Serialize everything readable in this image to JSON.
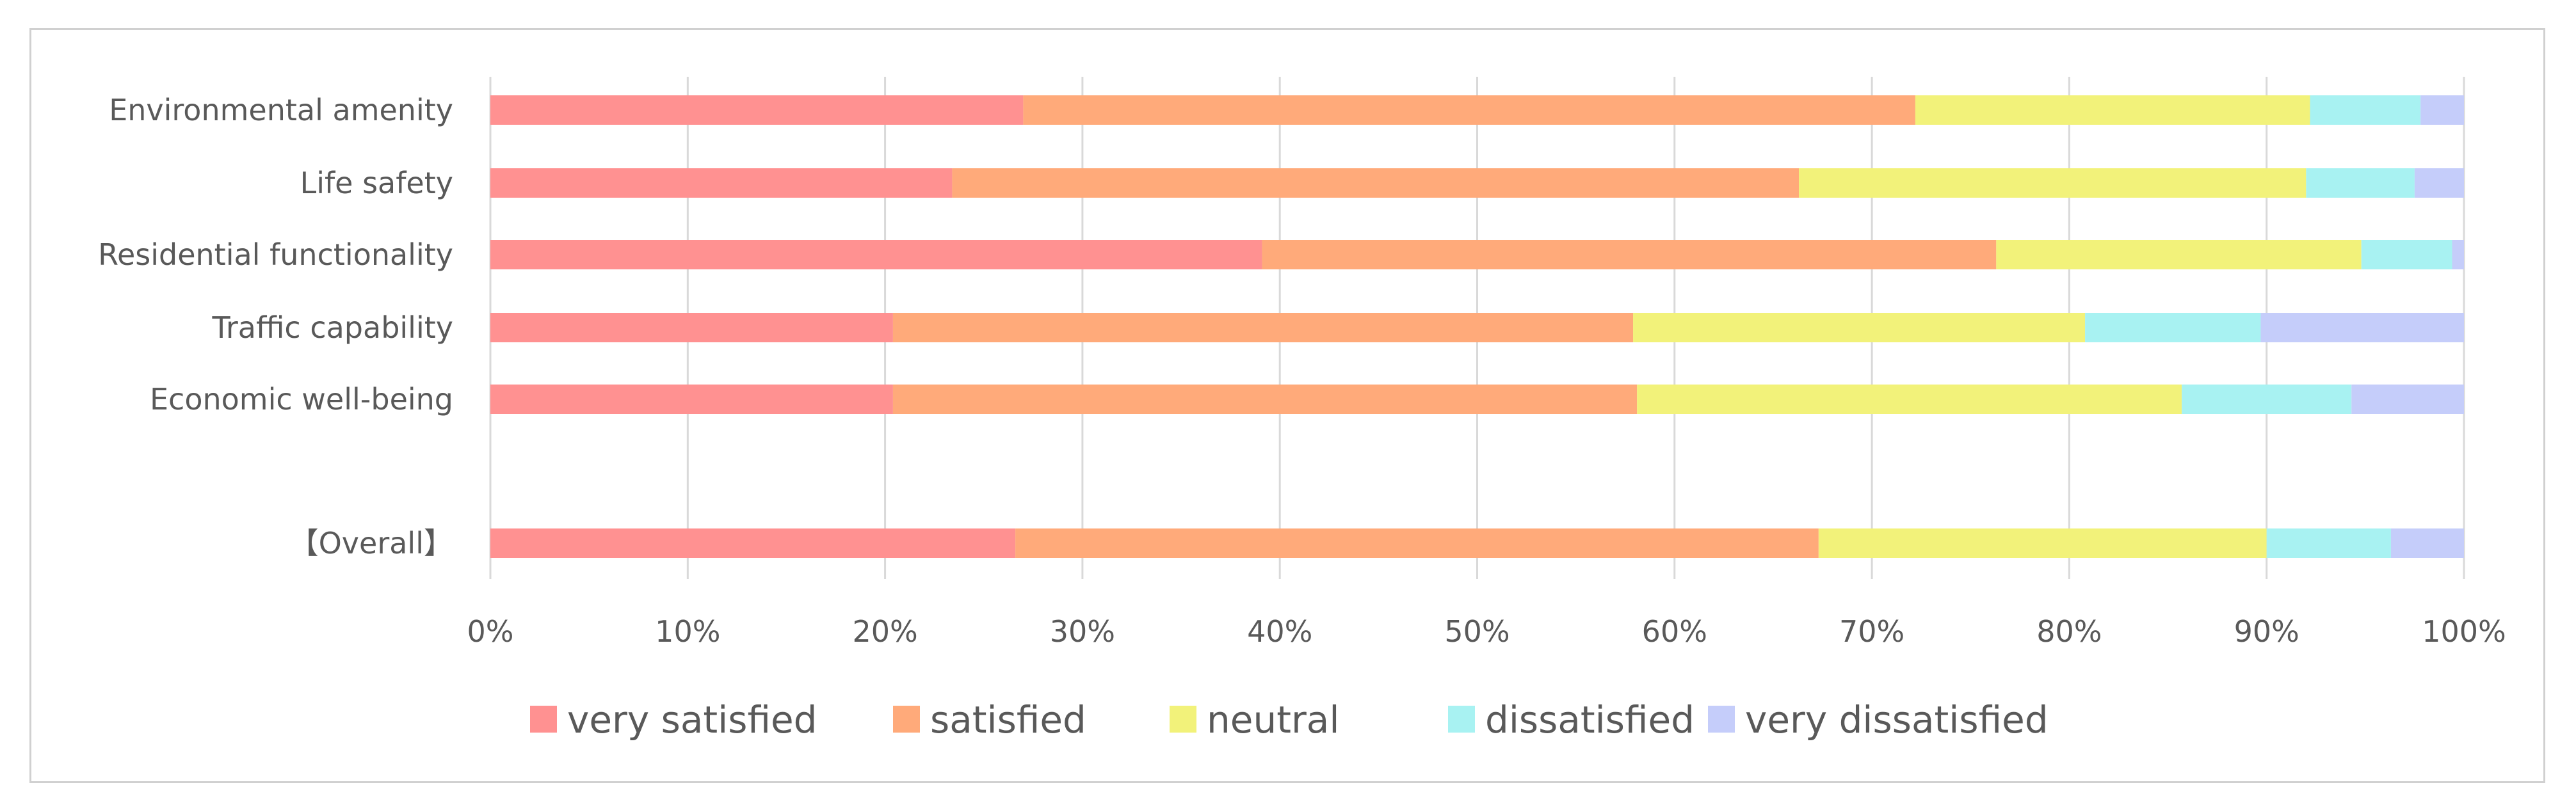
{
  "chart_data": {
    "type": "bar",
    "orientation": "horizontal",
    "stacked": "percent",
    "title": "",
    "xlabel": "",
    "ylabel": "",
    "xlim": [
      0,
      100
    ],
    "x_ticks": [
      "0%",
      "10%",
      "20%",
      "30%",
      "40%",
      "50%",
      "60%",
      "70%",
      "80%",
      "90%",
      "100%"
    ],
    "grid": "vertical",
    "legend_position": "bottom",
    "categories": [
      "Environmental amenity",
      "Life safety",
      "Residential functionality",
      "Traffic capability",
      "Economic well-being",
      "",
      "【Overall】"
    ],
    "series": [
      {
        "name": "very satisfied",
        "color": "#ff9191",
        "values": [
          27.0,
          23.4,
          39.1,
          20.4,
          20.4,
          null,
          26.6
        ]
      },
      {
        "name": "satisfied",
        "color": "#ffaa7a",
        "values": [
          45.2,
          42.9,
          37.2,
          37.5,
          37.7,
          null,
          40.7
        ]
      },
      {
        "name": "neutral",
        "color": "#f2f27a",
        "values": [
          20.0,
          25.7,
          18.5,
          22.9,
          27.6,
          null,
          22.7
        ]
      },
      {
        "name": "dissatisfied",
        "color": "#a8f2f2",
        "values": [
          5.6,
          5.5,
          4.6,
          8.9,
          8.6,
          null,
          6.3
        ]
      },
      {
        "name": "very dissatisfied",
        "color": "#c5cdfa",
        "values": [
          2.2,
          2.5,
          0.6,
          10.3,
          5.7,
          null,
          3.7
        ]
      }
    ]
  },
  "colors": {
    "gridline": "#d9d9d9",
    "axis_text": "#595959",
    "frame": "#d0d0d0"
  }
}
